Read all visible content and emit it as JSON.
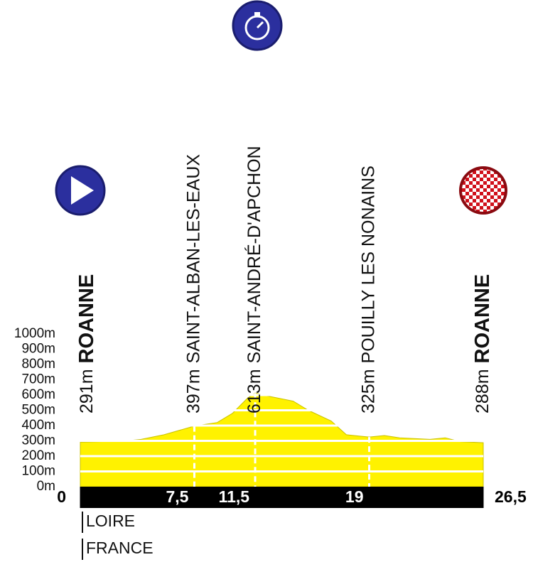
{
  "chart_data": {
    "type": "area",
    "color": "#fff200",
    "x": [
      0,
      3,
      4,
      5.5,
      7.5,
      9,
      10,
      11,
      11.5,
      12.5,
      14,
      15,
      16.5,
      17.5,
      19,
      20,
      21,
      23,
      24,
      25,
      26.5
    ],
    "values": [
      291,
      300,
      310,
      340,
      397,
      420,
      480,
      580,
      613,
      590,
      560,
      500,
      430,
      340,
      325,
      335,
      320,
      310,
      320,
      295,
      288
    ],
    "xlim": [
      0,
      26.5
    ],
    "xticks": [
      0,
      {
        "value": 7.5,
        "label": "7,5"
      },
      {
        "value": 11.5,
        "label": "11,5"
      },
      19,
      {
        "value": 26.5,
        "label": "26,5"
      }
    ],
    "ylim": [
      0,
      1000
    ],
    "yticks": [
      {
        "value": 0,
        "label": "0m"
      },
      {
        "value": 100,
        "label": "100m"
      },
      {
        "value": 200,
        "label": "200m"
      },
      {
        "value": 300,
        "label": "300m"
      },
      {
        "value": 400,
        "label": "400m"
      },
      {
        "value": 500,
        "label": "500m"
      },
      {
        "value": 600,
        "label": "600m"
      },
      {
        "value": 700,
        "label": "700m"
      },
      {
        "value": 800,
        "label": "800m"
      },
      {
        "value": 900,
        "label": "900m"
      },
      {
        "value": 1000,
        "label": "1000m"
      }
    ],
    "grid": true,
    "waypoints": [
      {
        "elevation": 291,
        "elevation_label": "291m",
        "name": "ROANNE"
      },
      {
        "elevation": 397,
        "elevation_label": "397m",
        "name": "SAINT-ALBAN-LES-EAUX"
      },
      {
        "elevation": 613,
        "elevation_label": "613m",
        "name": "SAINT-ANDRÉ-D'APCHON"
      },
      {
        "elevation": 325,
        "elevation_label": "325m",
        "name": "POUILLY LES NONAINS"
      },
      {
        "elevation": 288,
        "elevation_label": "288m",
        "name": "ROANNE"
      }
    ],
    "regions": [
      "LOIRE",
      "FRANCE"
    ]
  }
}
